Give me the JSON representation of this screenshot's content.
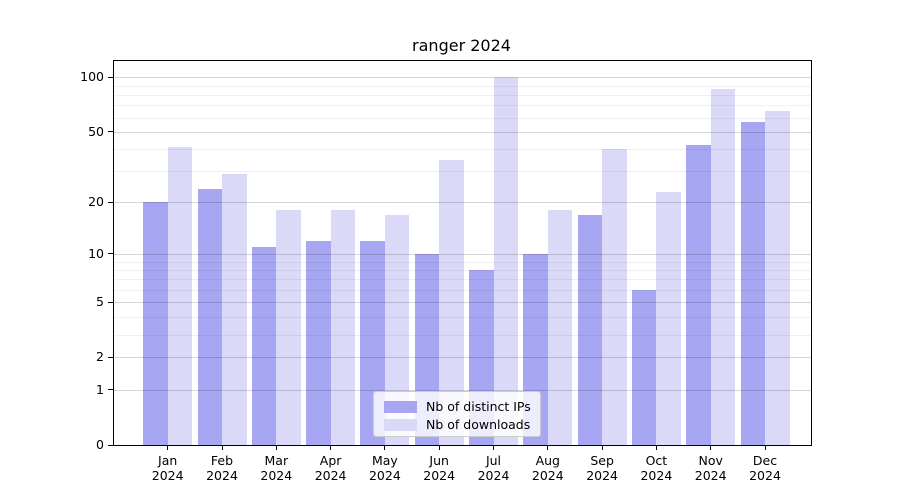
{
  "figure": {
    "title": "ranger 2024"
  },
  "chart_data": {
    "type": "bar",
    "title": "ranger 2024",
    "xlabel": "",
    "ylabel": "",
    "categories": [
      "Jan",
      "Feb",
      "Mar",
      "Apr",
      "May",
      "Jun",
      "Jul",
      "Aug",
      "Sep",
      "Oct",
      "Nov",
      "Dec"
    ],
    "year_label": "2024",
    "series": [
      {
        "name": "Nb of distinct IPs",
        "key": "ips",
        "color": "#a6a6f2",
        "values": [
          20,
          24,
          11,
          12,
          12,
          10,
          8,
          10,
          17,
          6,
          42,
          57
        ]
      },
      {
        "name": "Nb of downloads",
        "key": "downloads",
        "color": "#dadaf8",
        "values": [
          41,
          29,
          18,
          18,
          17,
          35,
          100,
          18,
          40,
          23,
          86,
          65
        ]
      }
    ],
    "y_axis": {
      "scale": "log10(value+1)",
      "ticks": [
        100,
        50,
        20,
        10,
        5,
        2,
        1,
        0
      ],
      "minor_ticks": [
        90,
        80,
        70,
        60,
        40,
        30,
        9,
        8,
        7,
        6,
        4,
        3
      ],
      "ylim": [
        0,
        123
      ]
    },
    "grid": true,
    "legend": {
      "position": "lower center",
      "entries": [
        "Nb of distinct IPs",
        "Nb of downloads"
      ]
    }
  }
}
